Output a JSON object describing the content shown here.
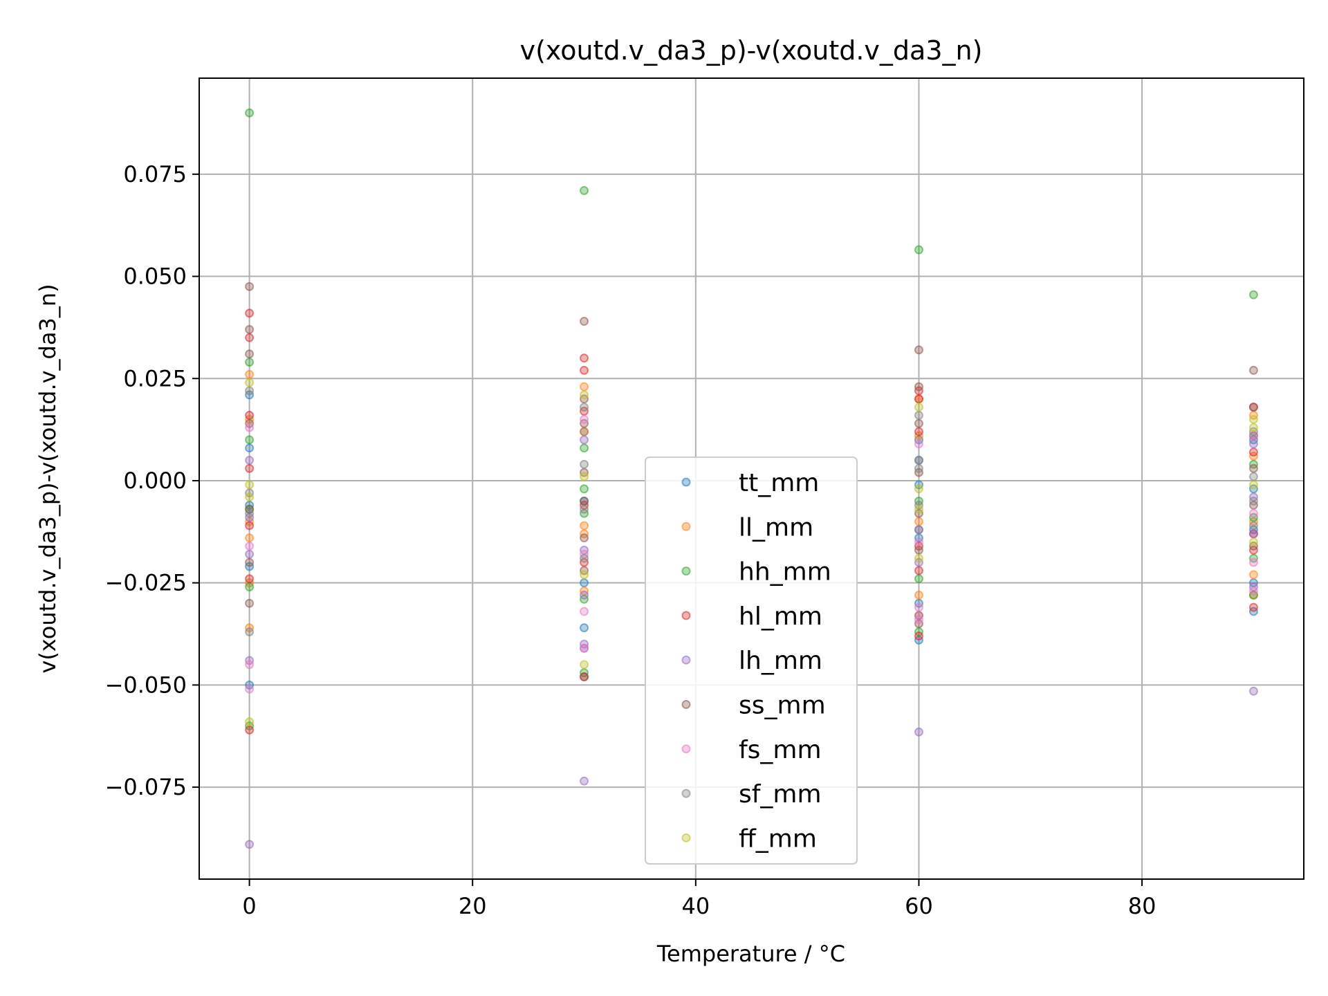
{
  "chart_data": {
    "type": "scatter",
    "title": "v(xoutd.v_da3_p)-v(xoutd.v_da3_n)",
    "xlabel": "Temperature / °C",
    "ylabel": "v(xoutd.v_da3_p)-v(xoutd.v_da3_n)",
    "xlim": [
      -4.5,
      94.5
    ],
    "ylim": [
      -0.0975,
      0.0985
    ],
    "xticks": [
      0,
      20,
      40,
      60,
      80
    ],
    "xtick_labels": [
      "0",
      "20",
      "40",
      "60",
      "80"
    ],
    "yticks": [
      -0.075,
      -0.05,
      -0.025,
      0.0,
      0.025,
      0.05,
      0.075
    ],
    "ytick_labels": [
      "−0.075",
      "−0.050",
      "−0.025",
      "0.000",
      "0.025",
      "0.050",
      "0.075"
    ],
    "grid": true,
    "legend_position": "lower-center",
    "series": [
      {
        "name": "tt_mm",
        "color": "#1f77b4",
        "points": [
          [
            0,
            0.021
          ],
          [
            0,
            0.008
          ],
          [
            0,
            -0.006
          ],
          [
            0,
            -0.021
          ],
          [
            0,
            -0.05
          ],
          [
            30,
            0.012
          ],
          [
            30,
            -0.005
          ],
          [
            30,
            -0.025
          ],
          [
            30,
            -0.036
          ],
          [
            60,
            0.01
          ],
          [
            60,
            -0.001
          ],
          [
            60,
            -0.014
          ],
          [
            60,
            -0.03
          ],
          [
            60,
            -0.039
          ],
          [
            90,
            0.01
          ],
          [
            90,
            -0.002
          ],
          [
            90,
            -0.012
          ],
          [
            90,
            -0.025
          ],
          [
            90,
            -0.032
          ]
        ]
      },
      {
        "name": "ll_mm",
        "color": "#ff7f0e",
        "points": [
          [
            0,
            0.026
          ],
          [
            0,
            0.015
          ],
          [
            0,
            -0.01
          ],
          [
            0,
            -0.014
          ],
          [
            0,
            -0.025
          ],
          [
            0,
            -0.036
          ],
          [
            30,
            0.023
          ],
          [
            30,
            0.012
          ],
          [
            30,
            -0.011
          ],
          [
            30,
            -0.013
          ],
          [
            30,
            -0.027
          ],
          [
            60,
            0.02
          ],
          [
            60,
            0.011
          ],
          [
            60,
            -0.01
          ],
          [
            60,
            -0.028
          ],
          [
            60,
            -0.033
          ],
          [
            90,
            0.016
          ],
          [
            90,
            0.006
          ],
          [
            90,
            -0.01
          ],
          [
            90,
            -0.023
          ],
          [
            90,
            -0.028
          ]
        ]
      },
      {
        "name": "hh_mm",
        "color": "#2ca02c",
        "points": [
          [
            0,
            0.09
          ],
          [
            0,
            0.029
          ],
          [
            0,
            0.01
          ],
          [
            0,
            -0.007
          ],
          [
            0,
            -0.026
          ],
          [
            0,
            -0.06
          ],
          [
            30,
            0.071
          ],
          [
            30,
            0.008
          ],
          [
            30,
            -0.002
          ],
          [
            30,
            -0.008
          ],
          [
            30,
            -0.029
          ],
          [
            30,
            -0.047
          ],
          [
            60,
            0.0565
          ],
          [
            60,
            0.005
          ],
          [
            60,
            -0.005
          ],
          [
            60,
            -0.024
          ],
          [
            60,
            -0.037
          ],
          [
            90,
            0.0455
          ],
          [
            90,
            0.004
          ],
          [
            90,
            -0.009
          ],
          [
            90,
            -0.019
          ],
          [
            90,
            -0.028
          ]
        ]
      },
      {
        "name": "hl_mm",
        "color": "#d62728",
        "points": [
          [
            0,
            0.041
          ],
          [
            0,
            0.035
          ],
          [
            0,
            0.016
          ],
          [
            0,
            0.003
          ],
          [
            0,
            -0.011
          ],
          [
            0,
            -0.024
          ],
          [
            0,
            -0.061
          ],
          [
            30,
            0.03
          ],
          [
            30,
            0.027
          ],
          [
            30,
            0.017
          ],
          [
            30,
            -0.006
          ],
          [
            30,
            -0.02
          ],
          [
            30,
            -0.048
          ],
          [
            60,
            0.022
          ],
          [
            60,
            0.02
          ],
          [
            60,
            0.012
          ],
          [
            60,
            -0.016
          ],
          [
            60,
            -0.022
          ],
          [
            60,
            -0.038
          ],
          [
            90,
            0.018
          ],
          [
            90,
            0.007
          ],
          [
            90,
            -0.013
          ],
          [
            90,
            -0.017
          ],
          [
            90,
            -0.031
          ]
        ]
      },
      {
        "name": "lh_mm",
        "color": "#9467bd",
        "points": [
          [
            0,
            0.005
          ],
          [
            0,
            -0.009
          ],
          [
            0,
            -0.018
          ],
          [
            0,
            -0.044
          ],
          [
            0,
            -0.089
          ],
          [
            30,
            0.01
          ],
          [
            30,
            -0.017
          ],
          [
            30,
            -0.028
          ],
          [
            30,
            -0.04
          ],
          [
            30,
            -0.041
          ],
          [
            30,
            -0.0735
          ],
          [
            60,
            0.005
          ],
          [
            60,
            -0.012
          ],
          [
            60,
            -0.02
          ],
          [
            60,
            -0.033
          ],
          [
            60,
            -0.0615
          ],
          [
            90,
            0.009
          ],
          [
            90,
            -0.004
          ],
          [
            90,
            -0.013
          ],
          [
            90,
            -0.026
          ],
          [
            90,
            -0.0515
          ]
        ]
      },
      {
        "name": "ss_mm",
        "color": "#8c564b",
        "points": [
          [
            0,
            0.0475
          ],
          [
            0,
            0.037
          ],
          [
            0,
            0.031
          ],
          [
            0,
            0.014
          ],
          [
            0,
            -0.007
          ],
          [
            0,
            -0.02
          ],
          [
            0,
            -0.03
          ],
          [
            30,
            0.039
          ],
          [
            30,
            0.02
          ],
          [
            30,
            0.014
          ],
          [
            30,
            0.002
          ],
          [
            30,
            -0.005
          ],
          [
            30,
            -0.014
          ],
          [
            30,
            -0.022
          ],
          [
            30,
            -0.048
          ],
          [
            60,
            0.032
          ],
          [
            60,
            0.023
          ],
          [
            60,
            0.014
          ],
          [
            60,
            0.002
          ],
          [
            60,
            -0.008
          ],
          [
            60,
            -0.017
          ],
          [
            60,
            -0.035
          ],
          [
            90,
            0.027
          ],
          [
            90,
            0.018
          ],
          [
            90,
            0.011
          ],
          [
            90,
            0.003
          ],
          [
            90,
            -0.006
          ],
          [
            90,
            -0.016
          ]
        ]
      },
      {
        "name": "fs_mm",
        "color": "#e377c2",
        "points": [
          [
            0,
            0.013
          ],
          [
            0,
            -0.016
          ],
          [
            0,
            -0.045
          ],
          [
            0,
            -0.051
          ],
          [
            30,
            0.015
          ],
          [
            30,
            -0.018
          ],
          [
            30,
            -0.032
          ],
          [
            30,
            -0.041
          ],
          [
            60,
            0.009
          ],
          [
            60,
            -0.015
          ],
          [
            60,
            -0.031
          ],
          [
            60,
            -0.034
          ],
          [
            90,
            0.011
          ],
          [
            90,
            -0.008
          ],
          [
            90,
            -0.02
          ],
          [
            90,
            -0.027
          ]
        ]
      },
      {
        "name": "sf_mm",
        "color": "#7f7f7f",
        "points": [
          [
            0,
            0.022
          ],
          [
            0,
            -0.003
          ],
          [
            0,
            -0.008
          ],
          [
            0,
            -0.037
          ],
          [
            30,
            0.018
          ],
          [
            30,
            0.004
          ],
          [
            30,
            -0.007
          ],
          [
            30,
            -0.019
          ],
          [
            60,
            0.016
          ],
          [
            60,
            0.003
          ],
          [
            60,
            -0.006
          ],
          [
            60,
            -0.012
          ],
          [
            90,
            0.012
          ],
          [
            90,
            0.001
          ],
          [
            90,
            -0.005
          ],
          [
            90,
            -0.011
          ]
        ]
      },
      {
        "name": "ff_mm",
        "color": "#bcbd22",
        "points": [
          [
            0,
            0.024
          ],
          [
            0,
            -0.001
          ],
          [
            0,
            -0.004
          ],
          [
            0,
            -0.059
          ],
          [
            30,
            0.021
          ],
          [
            30,
            0.001
          ],
          [
            30,
            -0.023
          ],
          [
            30,
            -0.045
          ],
          [
            60,
            0.018
          ],
          [
            60,
            -0.002
          ],
          [
            60,
            -0.007
          ],
          [
            60,
            -0.019
          ],
          [
            90,
            0.015
          ],
          [
            90,
            0.013
          ],
          [
            90,
            -0.001
          ],
          [
            90,
            -0.015
          ]
        ]
      }
    ]
  }
}
